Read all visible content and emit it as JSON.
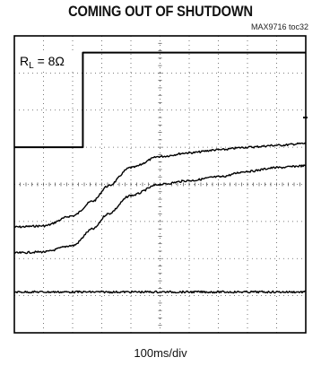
{
  "chart_data": {
    "type": "line",
    "title": "COMING OUT OF SHUTDOWN",
    "figure_id": "MAX9716 toc32",
    "xlabel": "100ms/div",
    "annotation": "R",
    "annotation_sub": "L",
    "annotation_rest": " = 8Ω",
    "divisions": {
      "x": 10,
      "y": 8
    },
    "grid": true,
    "series": [
      {
        "x": [
          0,
          1.2,
          2.35,
          2.35,
          10
        ],
        "y": [
          5.0,
          5.0,
          5.0,
          7.55,
          7.55
        ],
        "style": "step"
      },
      {
        "x": [
          0,
          1.0,
          2.0,
          2.7,
          3.2,
          4.0,
          5.0,
          6.0,
          7.0,
          8.0,
          9.0,
          10.0
        ],
        "y": [
          2.85,
          2.88,
          3.15,
          3.55,
          3.95,
          4.45,
          4.75,
          4.85,
          4.93,
          5.0,
          5.05,
          5.1
        ],
        "style": "noisy"
      },
      {
        "x": [
          0,
          1.0,
          2.0,
          2.7,
          3.2,
          4.0,
          5.0,
          6.0,
          7.0,
          8.0,
          9.0,
          10.0
        ],
        "y": [
          2.15,
          2.18,
          2.35,
          2.8,
          3.2,
          3.7,
          4.0,
          4.1,
          4.2,
          4.35,
          4.45,
          4.5
        ],
        "style": "noisy"
      },
      {
        "x": [
          0,
          10
        ],
        "y": [
          1.1,
          1.1
        ],
        "style": "noisy"
      }
    ]
  }
}
